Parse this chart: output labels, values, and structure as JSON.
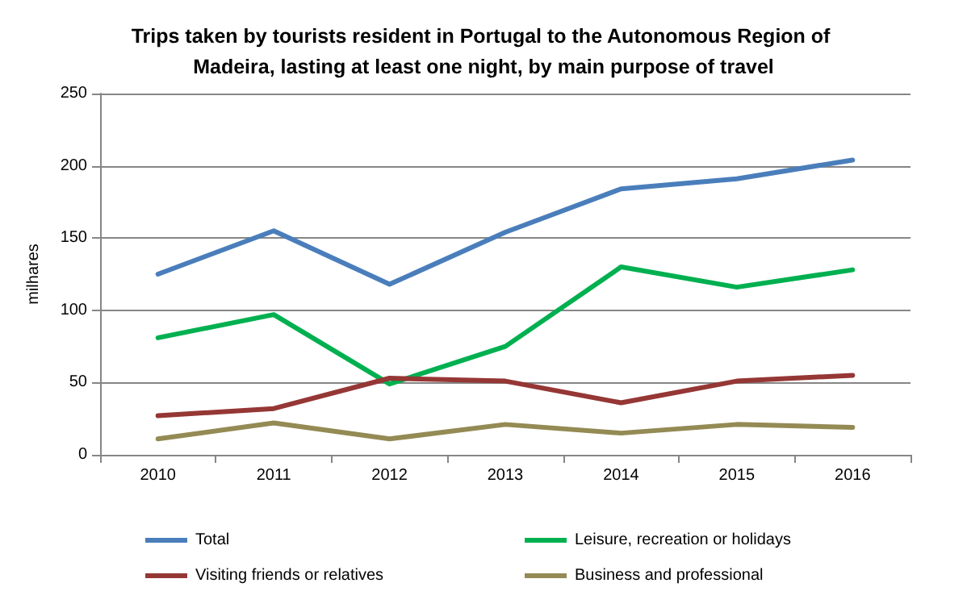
{
  "chart_data": {
    "type": "line",
    "title": "Trips taken by tourists resident in Portugal to the Autonomous Region of Madeira, lasting at least one night, by main purpose of travel",
    "ylabel": "milhares",
    "categories": [
      "2010",
      "2011",
      "2012",
      "2013",
      "2014",
      "2015",
      "2016"
    ],
    "series": [
      {
        "name": "Total",
        "color": "#4a7ebb",
        "values": [
          125,
          155,
          118,
          154,
          184,
          191,
          204
        ]
      },
      {
        "name": "Leisure, recreation or holidays",
        "color": "#00b050",
        "values": [
          81,
          97,
          49,
          75,
          130,
          116,
          128
        ]
      },
      {
        "name": "Visiting friends or relatives",
        "color": "#953735",
        "values": [
          27,
          32,
          53,
          51,
          36,
          51,
          55
        ]
      },
      {
        "name": "Business and professional",
        "color": "#948a54",
        "values": [
          11,
          22,
          11,
          21,
          15,
          21,
          19
        ]
      }
    ],
    "ylim": [
      0,
      250
    ],
    "yticks": [
      0,
      50,
      100,
      150,
      200,
      250
    ],
    "grid": "y",
    "legend": "bottom",
    "marker": "none",
    "line_style": "solid"
  }
}
